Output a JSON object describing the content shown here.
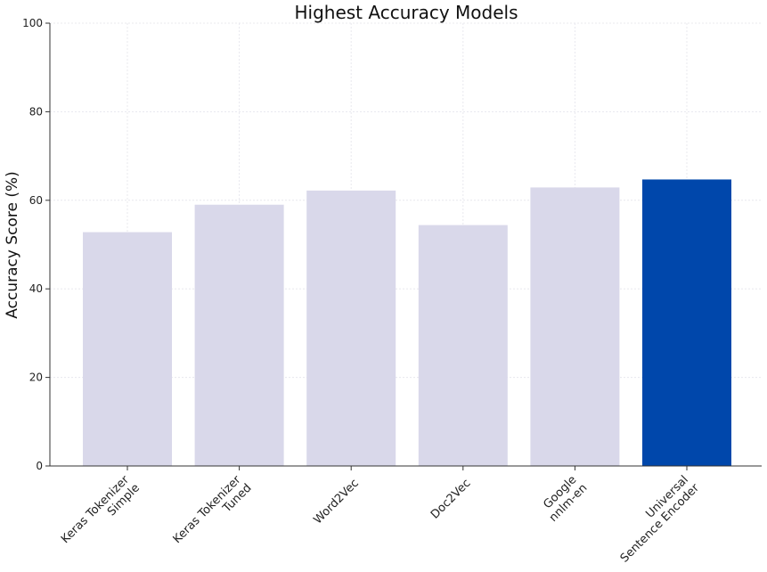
{
  "chart_data": {
    "type": "bar",
    "title": "Highest Accuracy Models",
    "xlabel": "",
    "ylabel": "Accuracy Score (%)",
    "ylim": [
      0,
      100
    ],
    "yticks": [
      0,
      20,
      40,
      60,
      80,
      100
    ],
    "grid": true,
    "categories": [
      [
        "Keras Tokenizer",
        "Simple"
      ],
      [
        "Keras Tokenizer",
        "Tuned"
      ],
      [
        "Word2Vec"
      ],
      [
        "Doc2Vec"
      ],
      [
        "Google",
        "nnlm-en"
      ],
      [
        "Universal",
        "Sentence Encoder"
      ]
    ],
    "values": [
      52.8,
      59.0,
      62.2,
      54.4,
      62.9,
      64.7
    ],
    "colors": [
      "#d9d8ea",
      "#d9d8ea",
      "#d9d8ea",
      "#d9d8ea",
      "#d9d8ea",
      "#0047ab"
    ]
  }
}
